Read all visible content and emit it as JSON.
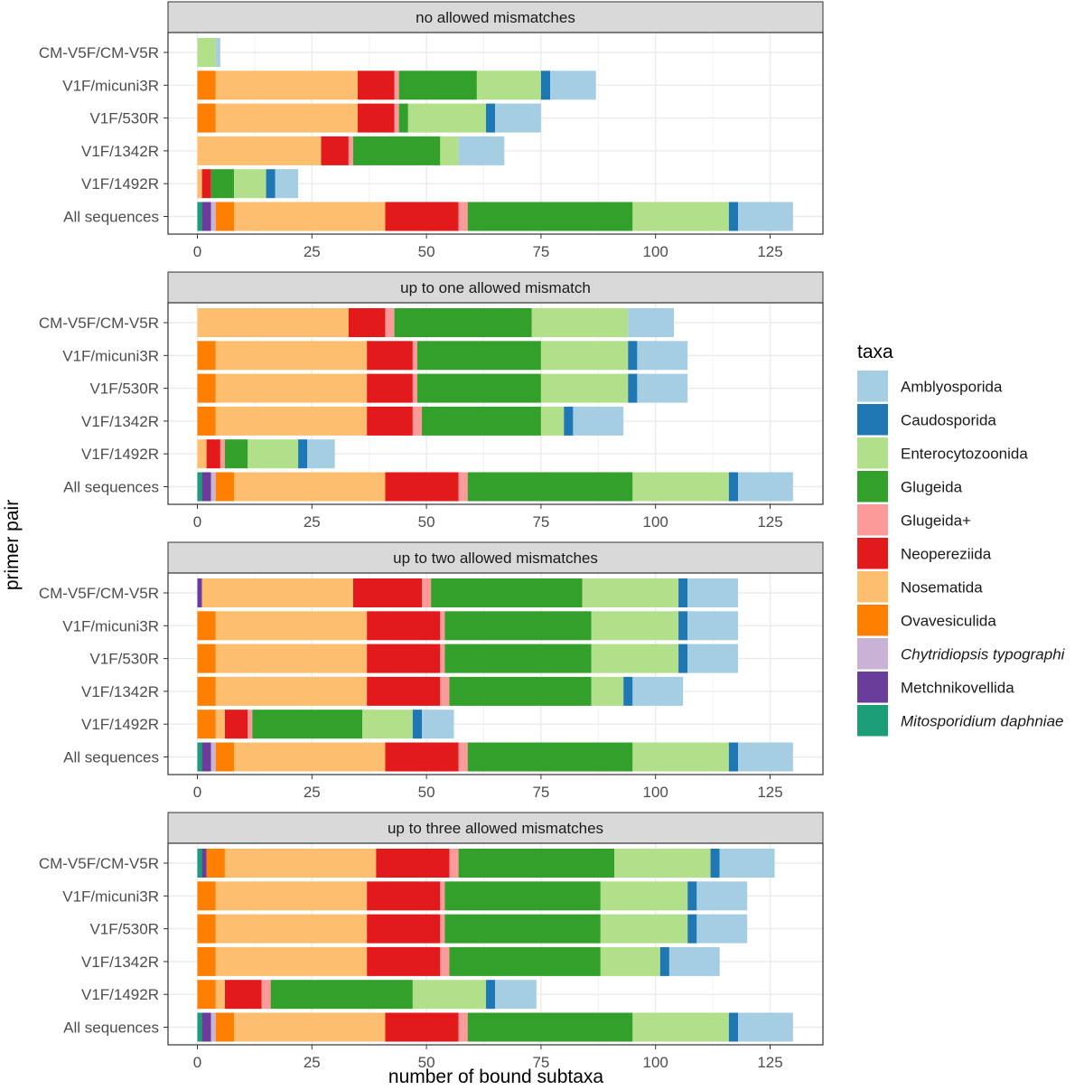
{
  "chart_data": {
    "type": "bar",
    "orientation": "horizontal",
    "stacked": true,
    "xlabel": "number of bound subtaxa",
    "ylabel": "primer pair",
    "xlim": [
      0,
      130
    ],
    "xticks": [
      0,
      25,
      50,
      75,
      100,
      125
    ],
    "grid": true,
    "legend": {
      "title": "taxa",
      "placement": "right",
      "entries": [
        {
          "name": "Amblyosporida",
          "color": "#A6CEE3",
          "italic": false
        },
        {
          "name": "Caudosporida",
          "color": "#1F78B4",
          "italic": false
        },
        {
          "name": "Enterocytozoonida",
          "color": "#B2DF8A",
          "italic": false
        },
        {
          "name": "Glugeida",
          "color": "#33A02C",
          "italic": false
        },
        {
          "name": "Glugeida+",
          "color": "#FB9A99",
          "italic": false
        },
        {
          "name": "Neopereziida",
          "color": "#E31A1C",
          "italic": false
        },
        {
          "name": "Nosematida",
          "color": "#FDBF6F",
          "italic": false
        },
        {
          "name": "Ovavesiculida",
          "color": "#FF7F00",
          "italic": false
        },
        {
          "name": "Chytridiopsis typographi",
          "color": "#CAB2D6",
          "italic": true
        },
        {
          "name": "Metchnikovellida",
          "color": "#6A3D9A",
          "italic": false
        },
        {
          "name": "Mitosporidium daphniae",
          "color": "#1B9E77",
          "italic": true
        }
      ]
    },
    "stack_order": [
      "Mitosporidium daphniae",
      "Metchnikovellida",
      "Chytridiopsis typographi",
      "Ovavesiculida",
      "Nosematida",
      "Neopereziida",
      "Glugeida+",
      "Glugeida",
      "Enterocytozoonida",
      "Caudosporida",
      "Amblyosporida"
    ],
    "panels": [
      {
        "title": "no allowed mismatches",
        "rows": [
          {
            "label": "CM-V5F/CM-V5R",
            "values": [
              0,
              0,
              0,
              0,
              0,
              0,
              0,
              0,
              4,
              0,
              1
            ]
          },
          {
            "label": "V1F/micuni3R",
            "values": [
              0,
              0,
              0,
              4,
              31,
              8,
              1,
              17,
              14,
              2,
              10
            ]
          },
          {
            "label": "V1F/530R",
            "values": [
              0,
              0,
              0,
              4,
              31,
              8,
              1,
              2,
              17,
              2,
              10
            ]
          },
          {
            "label": "V1F/1342R",
            "values": [
              0,
              0,
              0,
              0,
              27,
              6,
              1,
              19,
              4,
              0,
              10
            ]
          },
          {
            "label": "V1F/1492R",
            "values": [
              0,
              0,
              0,
              0,
              1,
              2,
              0,
              5,
              7,
              2,
              5
            ]
          },
          {
            "label": "All sequences",
            "values": [
              1,
              2,
              1,
              4,
              33,
              16,
              2,
              36,
              21,
              2,
              12
            ]
          }
        ]
      },
      {
        "title": "up to one allowed mismatch",
        "rows": [
          {
            "label": "CM-V5F/CM-V5R",
            "values": [
              0,
              0,
              0,
              0,
              33,
              8,
              2,
              30,
              21,
              0,
              10
            ]
          },
          {
            "label": "V1F/micuni3R",
            "values": [
              0,
              0,
              0,
              4,
              33,
              10,
              1,
              27,
              19,
              2,
              11
            ]
          },
          {
            "label": "V1F/530R",
            "values": [
              0,
              0,
              0,
              4,
              33,
              10,
              1,
              27,
              19,
              2,
              11
            ]
          },
          {
            "label": "V1F/1342R",
            "values": [
              0,
              0,
              0,
              4,
              33,
              10,
              2,
              26,
              5,
              2,
              11
            ]
          },
          {
            "label": "V1F/1492R",
            "values": [
              0,
              0,
              0,
              0,
              2,
              3,
              1,
              5,
              11,
              2,
              6
            ]
          },
          {
            "label": "All sequences",
            "values": [
              1,
              2,
              1,
              4,
              33,
              16,
              2,
              36,
              21,
              2,
              12
            ]
          }
        ]
      },
      {
        "title": "up to two allowed mismatches",
        "rows": [
          {
            "label": "CM-V5F/CM-V5R",
            "values": [
              0,
              1,
              0,
              0,
              33,
              15,
              2,
              33,
              21,
              2,
              11
            ]
          },
          {
            "label": "V1F/micuni3R",
            "values": [
              0,
              0,
              0,
              4,
              33,
              16,
              1,
              32,
              19,
              2,
              11
            ]
          },
          {
            "label": "V1F/530R",
            "values": [
              0,
              0,
              0,
              4,
              33,
              16,
              1,
              32,
              19,
              2,
              11
            ]
          },
          {
            "label": "V1F/1342R",
            "values": [
              0,
              0,
              0,
              4,
              33,
              16,
              2,
              31,
              7,
              2,
              11
            ]
          },
          {
            "label": "V1F/1492R",
            "values": [
              0,
              0,
              0,
              4,
              2,
              5,
              1,
              24,
              11,
              2,
              7
            ]
          },
          {
            "label": "All sequences",
            "values": [
              1,
              2,
              1,
              4,
              33,
              16,
              2,
              36,
              21,
              2,
              12
            ]
          }
        ]
      },
      {
        "title": "up to three allowed mismatches",
        "rows": [
          {
            "label": "CM-V5F/CM-V5R",
            "values": [
              1,
              1,
              0,
              4,
              33,
              16,
              2,
              34,
              21,
              2,
              12
            ]
          },
          {
            "label": "V1F/micuni3R",
            "values": [
              0,
              0,
              0,
              4,
              33,
              16,
              1,
              34,
              19,
              2,
              11
            ]
          },
          {
            "label": "V1F/530R",
            "values": [
              0,
              0,
              0,
              4,
              33,
              16,
              1,
              34,
              19,
              2,
              11
            ]
          },
          {
            "label": "V1F/1342R",
            "values": [
              0,
              0,
              0,
              4,
              33,
              16,
              2,
              33,
              13,
              2,
              11
            ]
          },
          {
            "label": "V1F/1492R",
            "values": [
              0,
              0,
              0,
              4,
              2,
              8,
              2,
              31,
              16,
              2,
              9
            ]
          },
          {
            "label": "All sequences",
            "values": [
              1,
              2,
              1,
              4,
              33,
              16,
              2,
              36,
              21,
              2,
              12
            ]
          }
        ]
      }
    ]
  }
}
